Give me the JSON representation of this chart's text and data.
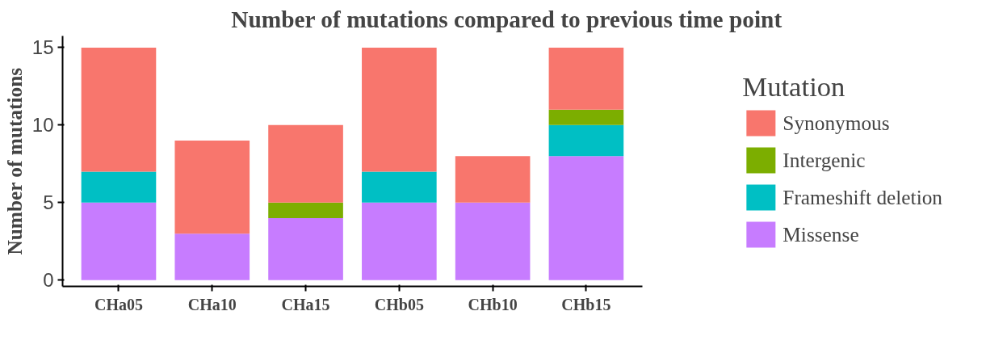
{
  "chart_data": {
    "type": "bar",
    "stacked": true,
    "title": "Number of mutations compared to previous time point",
    "ylabel": "Number of mutations",
    "legend_title": "Mutation",
    "categories": [
      "CHa05",
      "CHa10",
      "CHa15",
      "CHb05",
      "CHb10",
      "CHb15"
    ],
    "series": [
      {
        "name": "Missense",
        "color": "#c77cff",
        "values": [
          5,
          3,
          4,
          5,
          5,
          8
        ]
      },
      {
        "name": "Frameshift deletion",
        "color": "#00bfc4",
        "values": [
          2,
          0,
          0,
          2,
          0,
          2
        ]
      },
      {
        "name": "Intergenic",
        "color": "#7cae00",
        "values": [
          0,
          0,
          1,
          0,
          0,
          1
        ]
      },
      {
        "name": "Synonymous",
        "color": "#f8766d",
        "values": [
          8,
          6,
          5,
          8,
          3,
          4
        ]
      }
    ],
    "ylim": [
      -0.4,
      15.75
    ],
    "yticks": [
      0,
      5,
      10,
      15
    ],
    "grid": false,
    "legend": "right"
  }
}
